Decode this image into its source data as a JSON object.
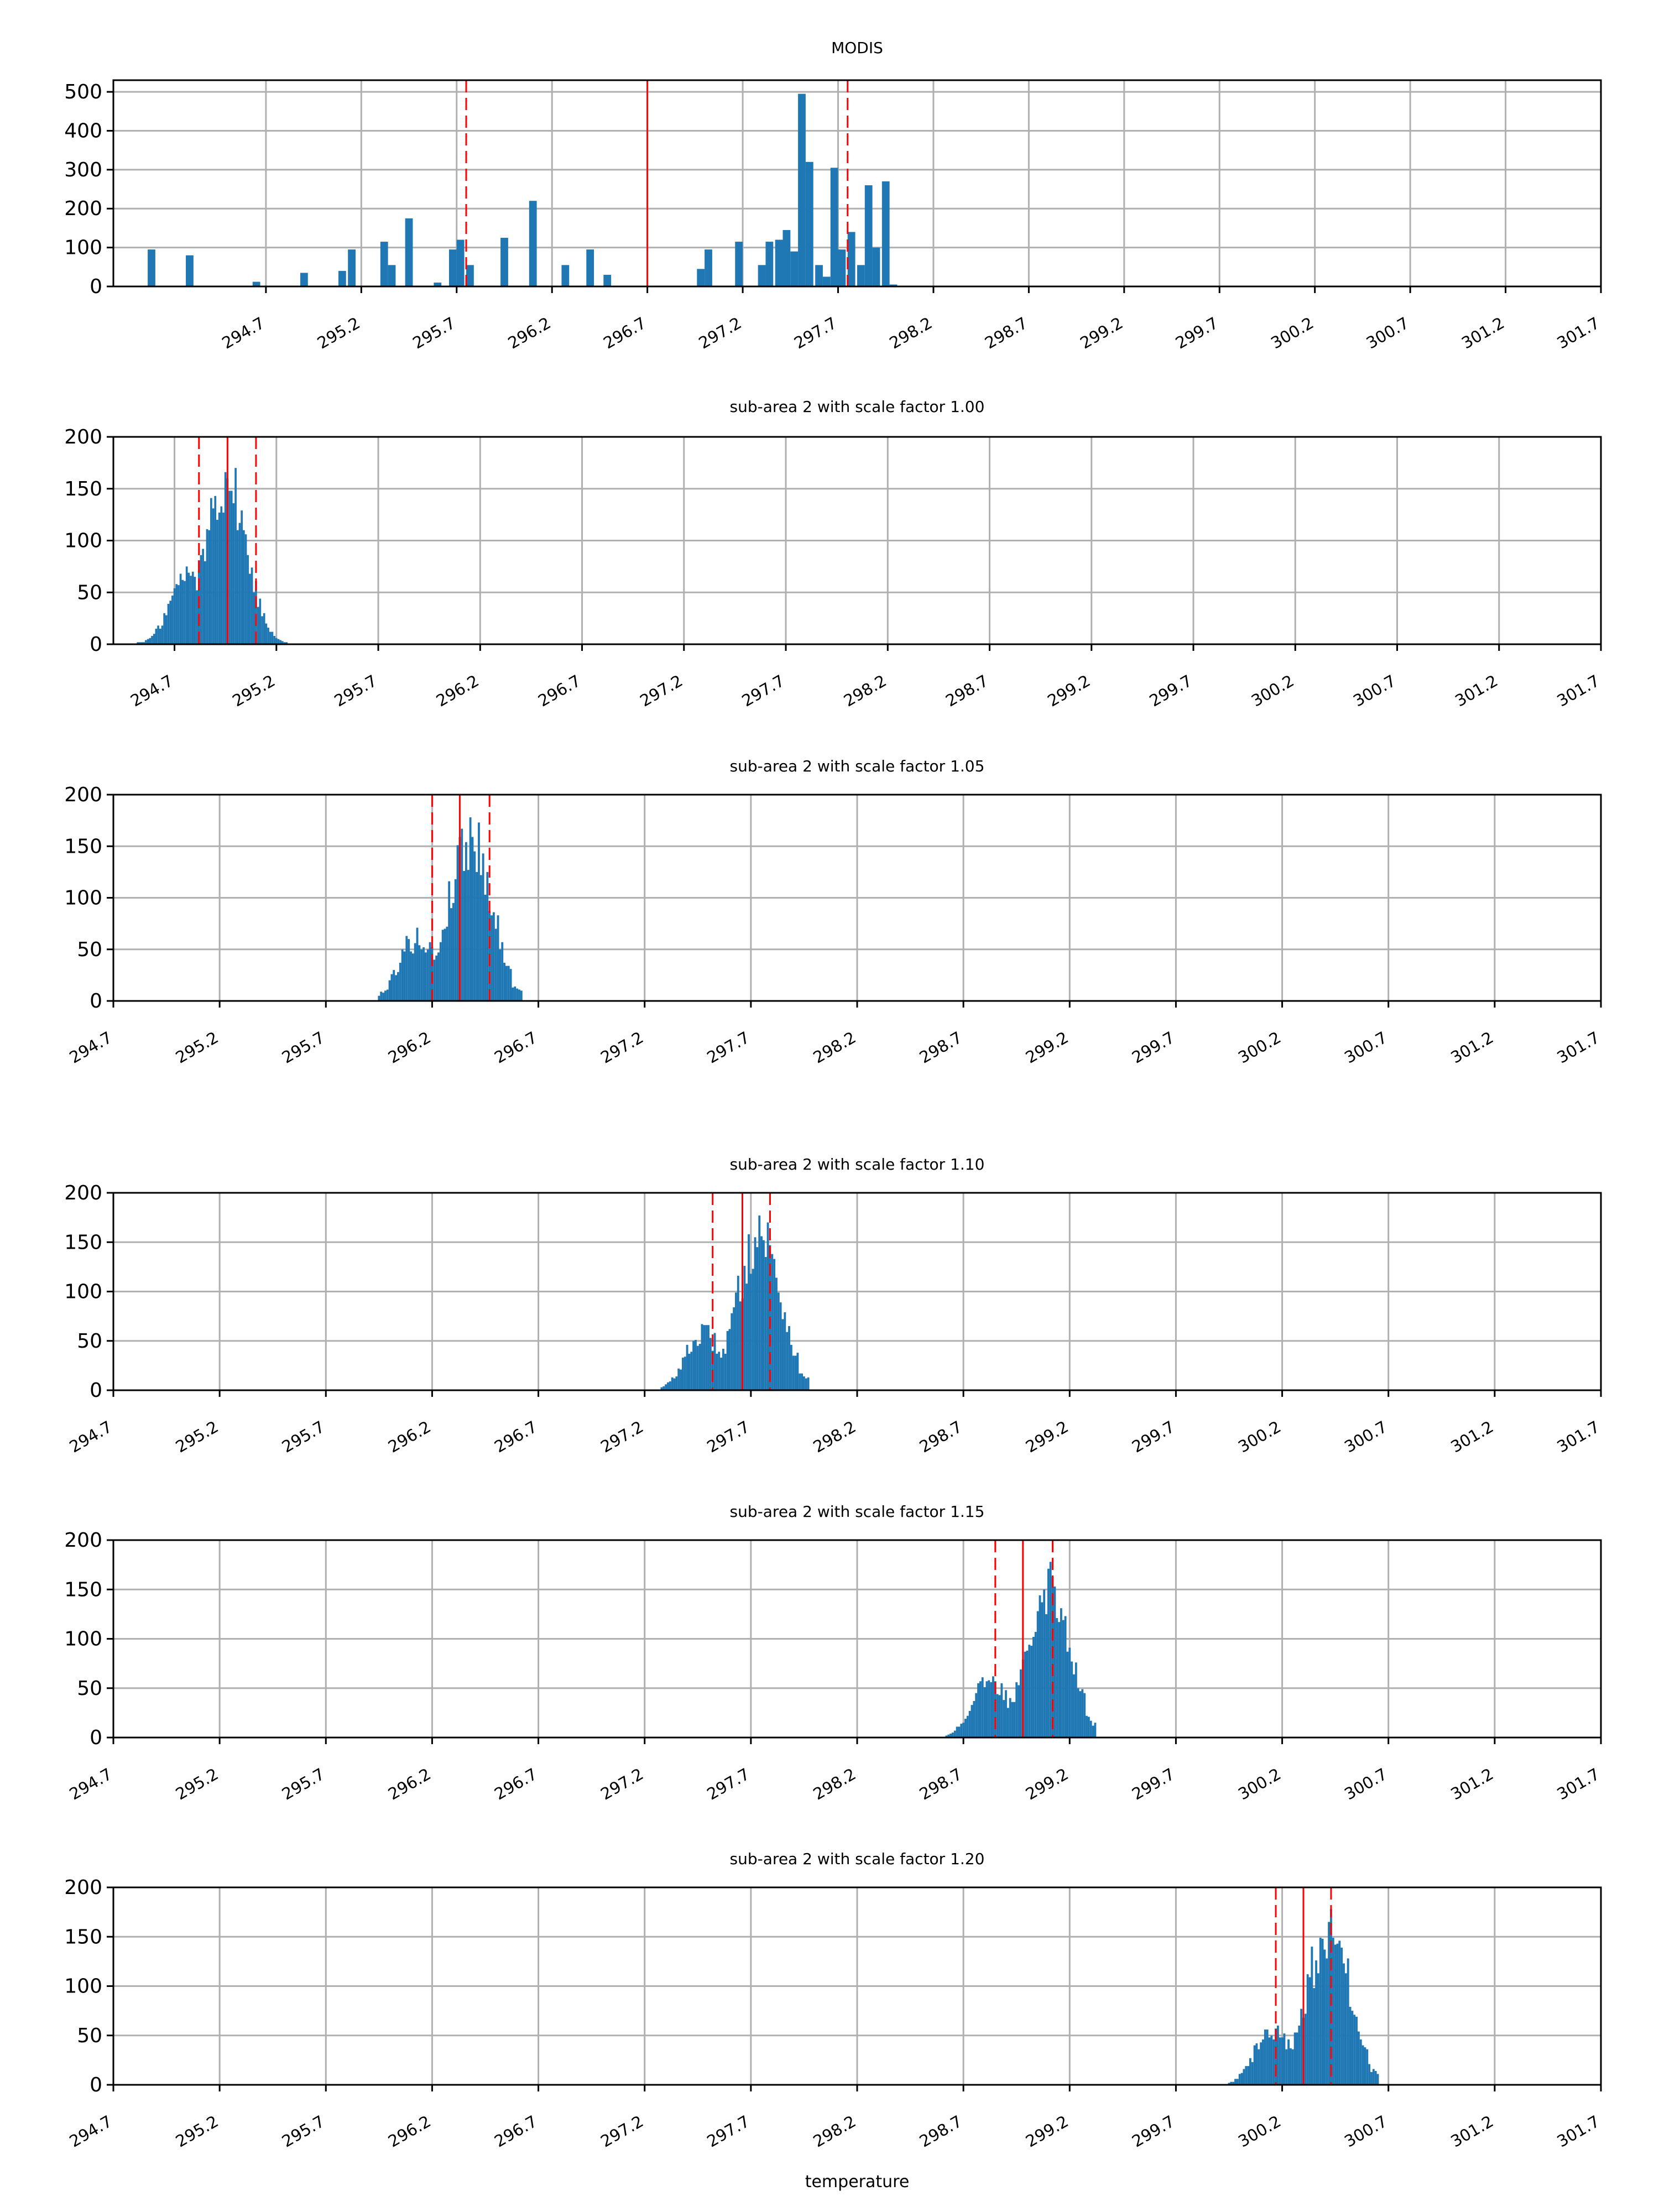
{
  "figure": {
    "xlabel": "temperature",
    "colors": {
      "bar": "#1f77b4",
      "line": "#ff0000",
      "grid": "#b0b0b0",
      "axis": "#000000"
    }
  },
  "chart_data": [
    {
      "type": "bar",
      "title": "MODIS",
      "xlabel": "",
      "ylabel": "",
      "xlim": [
        293.9,
        301.7
      ],
      "ylim": [
        0,
        530
      ],
      "xticks": [
        "294.7",
        "295.2",
        "295.7",
        "296.2",
        "296.7",
        "297.2",
        "297.7",
        "298.2",
        "298.7",
        "299.2",
        "299.7",
        "300.2",
        "300.7",
        "301.2",
        "301.7"
      ],
      "yticks": [
        "0",
        "100",
        "200",
        "300",
        "400",
        "500"
      ],
      "grid": true,
      "bins": [
        [
          294.1,
          95
        ],
        [
          294.3,
          80
        ],
        [
          294.65,
          12
        ],
        [
          294.9,
          35
        ],
        [
          295.1,
          40
        ],
        [
          295.15,
          95
        ],
        [
          295.32,
          115
        ],
        [
          295.36,
          55
        ],
        [
          295.45,
          175
        ],
        [
          295.6,
          10
        ],
        [
          295.68,
          95
        ],
        [
          295.72,
          120
        ],
        [
          295.77,
          55
        ],
        [
          295.95,
          125
        ],
        [
          296.1,
          220
        ],
        [
          296.27,
          55
        ],
        [
          296.4,
          95
        ],
        [
          296.49,
          30
        ],
        [
          296.98,
          45
        ],
        [
          297.02,
          95
        ],
        [
          297.18,
          115
        ],
        [
          297.3,
          55
        ],
        [
          297.34,
          115
        ],
        [
          297.39,
          120
        ],
        [
          297.43,
          145
        ],
        [
          297.47,
          90
        ],
        [
          297.51,
          495
        ],
        [
          297.55,
          320
        ],
        [
          297.6,
          55
        ],
        [
          297.64,
          25
        ],
        [
          297.68,
          305
        ],
        [
          297.72,
          95
        ],
        [
          297.77,
          140
        ],
        [
          297.82,
          55
        ],
        [
          297.86,
          260
        ],
        [
          297.9,
          100
        ],
        [
          297.95,
          270
        ],
        [
          297.99,
          5
        ]
      ],
      "mean": 296.7,
      "band": [
        295.75,
        297.75
      ]
    },
    {
      "type": "bar",
      "title": "sub-area 2 with scale factor 1.00",
      "xlabel": "",
      "ylabel": "",
      "xlim": [
        294.4,
        301.7
      ],
      "ylim": [
        0,
        200
      ],
      "xticks": [
        "294.7",
        "295.2",
        "295.7",
        "296.2",
        "296.7",
        "297.2",
        "297.7",
        "298.2",
        "298.7",
        "299.2",
        "299.7",
        "300.2",
        "300.7",
        "301.2",
        "301.7"
      ],
      "yticks": [
        "0",
        "50",
        "100",
        "150",
        "200"
      ],
      "grid": true,
      "hist": {
        "start": 294.52,
        "end": 295.25,
        "core": 294.95,
        "core_sigma": 0.1,
        "core_peak": 160,
        "shoulder": 294.75,
        "shoulder_sigma": 0.08,
        "shoulder_peak": 58
      },
      "mean": 294.96,
      "band": [
        294.82,
        295.1
      ]
    },
    {
      "type": "bar",
      "title": "sub-area 2 with scale factor 1.05",
      "xlabel": "",
      "ylabel": "",
      "xlim": [
        294.7,
        301.7
      ],
      "ylim": [
        0,
        200
      ],
      "xticks": [
        "294.7",
        "295.2",
        "295.7",
        "296.2",
        "296.7",
        "297.2",
        "297.7",
        "298.2",
        "298.7",
        "299.2",
        "299.7",
        "300.2",
        "300.7",
        "301.2",
        "301.7"
      ],
      "yticks": [
        "0",
        "50",
        "100",
        "150",
        "200"
      ],
      "grid": true,
      "hist": {
        "start": 295.95,
        "end": 296.62,
        "core": 296.38,
        "core_sigma": 0.1,
        "core_peak": 160,
        "shoulder": 296.12,
        "shoulder_sigma": 0.08,
        "shoulder_peak": 58
      },
      "mean": 296.33,
      "band": [
        296.2,
        296.47
      ]
    },
    {
      "type": "bar",
      "title": "sub-area 2 with scale factor 1.10",
      "xlabel": "",
      "ylabel": "",
      "xlim": [
        294.7,
        301.7
      ],
      "ylim": [
        0,
        200
      ],
      "xticks": [
        "294.7",
        "295.2",
        "295.7",
        "296.2",
        "296.7",
        "297.2",
        "297.7",
        "298.2",
        "298.7",
        "299.2",
        "299.7",
        "300.2",
        "300.7",
        "301.2",
        "301.7"
      ],
      "yticks": [
        "0",
        "50",
        "100",
        "150",
        "200"
      ],
      "grid": true,
      "hist": {
        "start": 297.28,
        "end": 297.97,
        "core": 297.74,
        "core_sigma": 0.1,
        "core_peak": 160,
        "shoulder": 297.47,
        "shoulder_sigma": 0.08,
        "shoulder_peak": 55
      },
      "mean": 297.66,
      "band": [
        297.52,
        297.79
      ]
    },
    {
      "type": "bar",
      "title": "sub-area 2 with scale factor 1.15",
      "xlabel": "",
      "ylabel": "",
      "xlim": [
        294.7,
        301.7
      ],
      "ylim": [
        0,
        200
      ],
      "xticks": [
        "294.7",
        "295.2",
        "295.7",
        "296.2",
        "296.7",
        "297.2",
        "297.7",
        "298.2",
        "298.7",
        "299.2",
        "299.7",
        "300.2",
        "300.7",
        "301.2",
        "301.7"
      ],
      "yticks": [
        "0",
        "50",
        "100",
        "150",
        "200"
      ],
      "grid": true,
      "hist": {
        "start": 298.62,
        "end": 299.32,
        "core": 299.1,
        "core_sigma": 0.1,
        "core_peak": 160,
        "shoulder": 298.82,
        "shoulder_sigma": 0.08,
        "shoulder_peak": 55
      },
      "mean": 298.98,
      "band": [
        298.85,
        299.12
      ]
    },
    {
      "type": "bar",
      "title": "sub-area 2 with scale factor 1.20",
      "xlabel": "temperature",
      "ylabel": "",
      "xlim": [
        294.7,
        301.7
      ],
      "ylim": [
        0,
        200
      ],
      "xticks": [
        "294.7",
        "295.2",
        "295.7",
        "296.2",
        "296.7",
        "297.2",
        "297.7",
        "298.2",
        "298.7",
        "299.2",
        "299.7",
        "300.2",
        "300.7",
        "301.2",
        "301.7"
      ],
      "yticks": [
        "0",
        "50",
        "100",
        "150",
        "200"
      ],
      "grid": true,
      "hist": {
        "start": 299.95,
        "end": 300.65,
        "core": 300.42,
        "core_sigma": 0.1,
        "core_peak": 160,
        "shoulder": 300.15,
        "shoulder_sigma": 0.08,
        "shoulder_peak": 55
      },
      "mean": 300.3,
      "band": [
        300.17,
        300.43
      ]
    }
  ]
}
